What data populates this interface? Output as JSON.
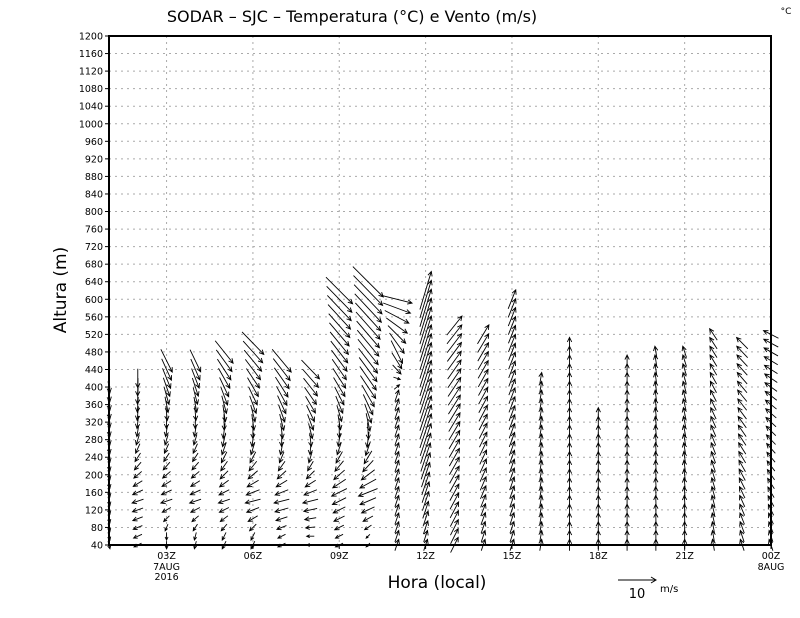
{
  "chart_data": {
    "type": "vector",
    "title": "SODAR – SJC – Temperatura (°C) e Vento (m/s)",
    "corner_unit": "°C",
    "xlabel": "Hora (local)",
    "ylabel": "Altura (m)",
    "xlim_hours": [
      1,
      24
    ],
    "ylim": [
      40,
      1200
    ],
    "ytick_step": 40,
    "yticks": [
      40,
      80,
      120,
      160,
      200,
      240,
      280,
      320,
      360,
      400,
      440,
      480,
      520,
      560,
      600,
      640,
      680,
      720,
      760,
      800,
      840,
      880,
      920,
      960,
      1000,
      1040,
      1080,
      1120,
      1160,
      1200
    ],
    "xticks": [
      {
        "hour": 3,
        "label": "03Z",
        "sub1": "7AUG",
        "sub2": "2016"
      },
      {
        "hour": 6,
        "label": "06Z"
      },
      {
        "hour": 9,
        "label": "09Z"
      },
      {
        "hour": 12,
        "label": "12Z"
      },
      {
        "hour": 15,
        "label": "15Z"
      },
      {
        "hour": 18,
        "label": "18Z"
      },
      {
        "hour": 21,
        "label": "21Z"
      },
      {
        "hour": 24,
        "label": "00Z",
        "sub1": "8AUG"
      }
    ],
    "grid": true,
    "level_step_m": 20,
    "reference_vector": {
      "value": 10,
      "label": "10",
      "unit": "m/s"
    },
    "columns": [
      {
        "hour": 1,
        "top": 400,
        "profile": [
          [
            40,
            0.5,
            -2
          ],
          [
            400,
            0.5,
            -3
          ]
        ]
      },
      {
        "hour": 2,
        "top": 420,
        "profile": [
          [
            40,
            -2,
            -1
          ],
          [
            140,
            -3,
            -1
          ],
          [
            300,
            -0.5,
            -3
          ],
          [
            420,
            0,
            -5
          ]
        ]
      },
      {
        "hour": 3,
        "top": 460,
        "profile": [
          [
            60,
            0,
            -2
          ],
          [
            140,
            -3,
            -1
          ],
          [
            300,
            -0.5,
            -3
          ],
          [
            460,
            3,
            -6
          ]
        ]
      },
      {
        "hour": 4,
        "top": 470,
        "profile": [
          [
            60,
            -0.5,
            -2
          ],
          [
            140,
            -3,
            -1
          ],
          [
            300,
            -0.5,
            -3
          ],
          [
            470,
            3,
            -6
          ]
        ]
      },
      {
        "hour": 5,
        "top": 490,
        "profile": [
          [
            60,
            -1,
            -2
          ],
          [
            140,
            -3,
            -1
          ],
          [
            300,
            -0.5,
            -4
          ],
          [
            490,
            5,
            -6
          ]
        ]
      },
      {
        "hour": 6,
        "top": 510,
        "profile": [
          [
            60,
            -1,
            -2
          ],
          [
            140,
            -4,
            -1
          ],
          [
            300,
            0,
            -4
          ],
          [
            510,
            6,
            -6
          ]
        ]
      },
      {
        "hour": 7,
        "top": 460,
        "profile": [
          [
            60,
            -2,
            -1
          ],
          [
            140,
            -4,
            -1
          ],
          [
            300,
            0.5,
            -4
          ],
          [
            460,
            5,
            -6
          ]
        ]
      },
      {
        "hour": 8,
        "top": 450,
        "profile": [
          [
            60,
            -2,
            0
          ],
          [
            140,
            -4,
            -1
          ],
          [
            300,
            1,
            -4
          ],
          [
            450,
            5,
            -5
          ]
        ]
      },
      {
        "hour": 9,
        "top": 620,
        "profile": [
          [
            60,
            -2,
            -1
          ],
          [
            160,
            -4,
            -2
          ],
          [
            400,
            3,
            -5
          ],
          [
            620,
            7,
            -7
          ]
        ]
      },
      {
        "hour": 10,
        "top": 640,
        "profile": [
          [
            60,
            -1,
            -1
          ],
          [
            160,
            -5,
            -2
          ],
          [
            400,
            4,
            -6
          ],
          [
            640,
            8,
            -8
          ]
        ]
      },
      {
        "hour": 11,
        "top": 600,
        "profile": [
          [
            60,
            1,
            3
          ],
          [
            380,
            1,
            3
          ],
          [
            480,
            3,
            -6
          ],
          [
            600,
            8,
            -2
          ]
        ]
      },
      {
        "hour": 12,
        "top": 620,
        "profile": [
          [
            60,
            1,
            3
          ],
          [
            300,
            3,
            9
          ],
          [
            620,
            3,
            10
          ]
        ]
      },
      {
        "hour": 13,
        "top": 540,
        "profile": [
          [
            60,
            2,
            4
          ],
          [
            330,
            3,
            5
          ],
          [
            540,
            4,
            5
          ]
        ]
      },
      {
        "hour": 14,
        "top": 520,
        "profile": [
          [
            60,
            1,
            3
          ],
          [
            520,
            3,
            5
          ]
        ]
      },
      {
        "hour": 15,
        "top": 600,
        "profile": [
          [
            60,
            1,
            3
          ],
          [
            600,
            2,
            5
          ]
        ]
      },
      {
        "hour": 16,
        "top": 420,
        "profile": [
          [
            60,
            0.5,
            3
          ],
          [
            420,
            0.5,
            3
          ]
        ]
      },
      {
        "hour": 17,
        "top": 500,
        "profile": [
          [
            60,
            0,
            3
          ],
          [
            500,
            0,
            3
          ]
        ]
      },
      {
        "hour": 18,
        "top": 340,
        "profile": [
          [
            60,
            0,
            3
          ],
          [
            340,
            0,
            3
          ]
        ]
      },
      {
        "hour": 19,
        "top": 470,
        "profile": [
          [
            60,
            0,
            3
          ],
          [
            470,
            0,
            3
          ]
        ]
      },
      {
        "hour": 20,
        "top": 480,
        "profile": [
          [
            60,
            0,
            3
          ],
          [
            480,
            -0.5,
            3
          ]
        ]
      },
      {
        "hour": 21,
        "top": 480,
        "profile": [
          [
            60,
            0,
            3
          ],
          [
            480,
            -1,
            3
          ]
        ]
      },
      {
        "hour": 22,
        "top": 520,
        "profile": [
          [
            60,
            -0.5,
            3
          ],
          [
            520,
            -2,
            3
          ]
        ]
      },
      {
        "hour": 23,
        "top": 510,
        "profile": [
          [
            60,
            -1,
            3
          ],
          [
            510,
            -3,
            3
          ]
        ]
      },
      {
        "hour": 24,
        "top": 530,
        "profile": [
          [
            60,
            -1,
            3
          ],
          [
            530,
            -4,
            2
          ]
        ]
      }
    ]
  }
}
